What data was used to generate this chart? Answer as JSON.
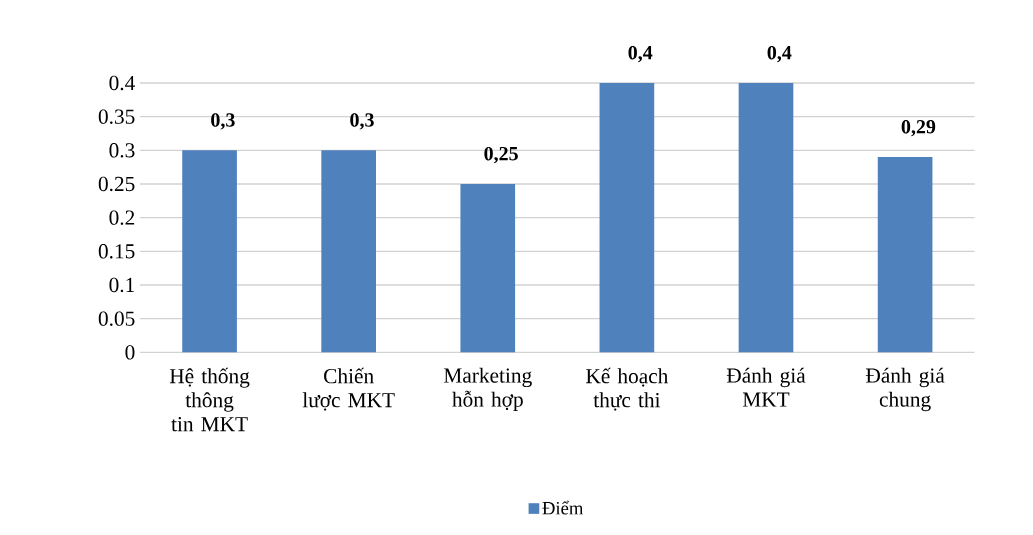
{
  "chart_data": {
    "type": "bar",
    "categories": [
      "Hệ thống thông tin MKT",
      "Chiến lược MKT",
      "Marketing hỗn hợp",
      "Kế hoạch thực thi",
      "Đánh giá MKT",
      "Đánh giá chung"
    ],
    "series": [
      {
        "name": "Điểm",
        "color": "#4f81bd",
        "values": [
          0.3,
          0.3,
          0.25,
          0.4,
          0.4,
          0.29
        ],
        "value_labels": [
          "0,3",
          "0,3",
          "0,25",
          "0,4",
          "0,4",
          "0,29"
        ]
      }
    ],
    "ylim": [
      0,
      0.4
    ],
    "yticks": [
      0,
      0.05,
      0.1,
      0.15,
      0.2,
      0.25,
      0.3,
      0.35,
      0.4
    ],
    "grid": "y",
    "legend": "bottom"
  }
}
